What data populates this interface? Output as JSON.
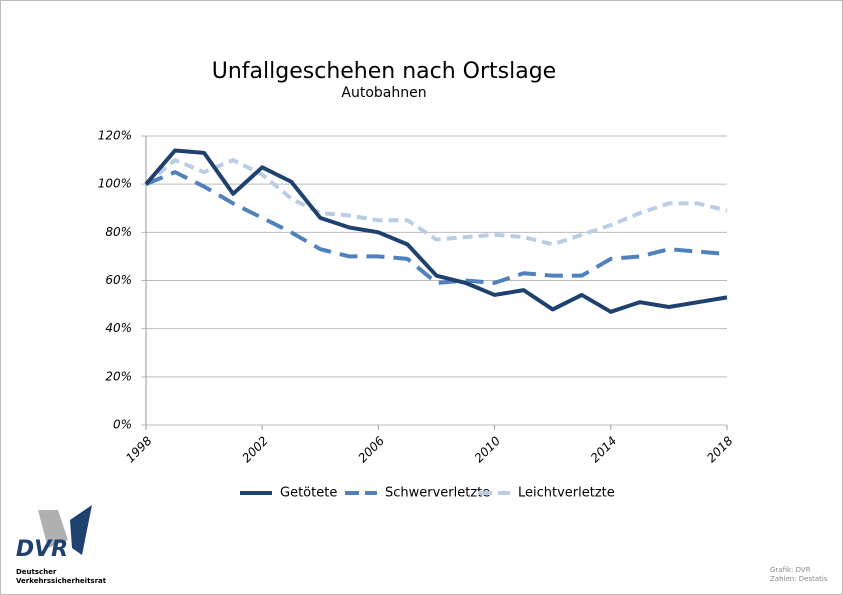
{
  "chart_data": {
    "type": "line",
    "title": "Unfallgeschehen nach Ortslage",
    "subtitle": "Autobahnen",
    "x": [
      1998,
      1999,
      2000,
      2001,
      2002,
      2003,
      2004,
      2005,
      2006,
      2007,
      2008,
      2009,
      2010,
      2011,
      2012,
      2013,
      2014,
      2015,
      2016,
      2017,
      2018
    ],
    "series": [
      {
        "name": "Getötete",
        "color": "#1f4170",
        "values": [
          100,
          114,
          113,
          96,
          107,
          101,
          86,
          82,
          80,
          75,
          62,
          59,
          54,
          56,
          48,
          54,
          47,
          51,
          49,
          51,
          53
        ]
      },
      {
        "name": "Schwerverletzte",
        "color": "#4f81bd",
        "values": [
          100,
          105,
          99,
          92,
          86,
          80,
          73,
          70,
          70,
          69,
          59,
          60,
          59,
          63,
          62,
          62,
          69,
          70,
          73,
          72,
          71
        ]
      },
      {
        "name": "Leichtverletzte",
        "color": "#b9cde5",
        "values": [
          100,
          110,
          105,
          110,
          104,
          94,
          88,
          87,
          85,
          85,
          77,
          78,
          79,
          78,
          75,
          79,
          83,
          88,
          92,
          92,
          89
        ]
      }
    ],
    "xlim": [
      1998,
      2018
    ],
    "xticks": [
      1998,
      2002,
      2006,
      2010,
      2014,
      2018
    ],
    "ylim": [
      0,
      120
    ],
    "yticks": [
      {
        "value": 0,
        "label": "0%"
      },
      {
        "value": 20,
        "label": "20%"
      },
      {
        "value": 40,
        "label": "40%"
      },
      {
        "value": 60,
        "label": "60%"
      },
      {
        "value": 80,
        "label": "80%"
      },
      {
        "value": 100,
        "label": "100%"
      },
      {
        "value": 120,
        "label": "120%"
      }
    ],
    "grid": true,
    "legend": "bottom"
  },
  "logo": {
    "text": "DVR",
    "caption_line1": "Deutscher",
    "caption_line2": "Verkehrssicherheitsrat"
  },
  "credits": {
    "line1": "Grafik: DVR",
    "line2": "Zahlen: Destatis"
  }
}
